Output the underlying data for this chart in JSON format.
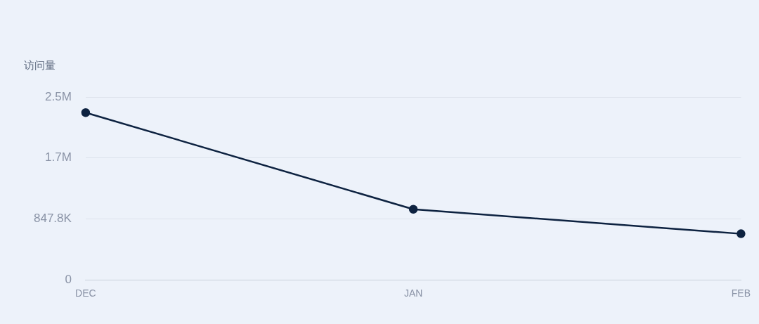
{
  "chart_data": {
    "type": "line",
    "ylabel": "访问量",
    "categories": [
      "DEC",
      "JAN",
      "FEB"
    ],
    "series": [
      {
        "color": "#0d2240",
        "values": [
          2326000,
          982000,
          641000
        ]
      }
    ],
    "ylim": [
      0,
      2543400
    ],
    "yticks": [
      0,
      {
        "value": 847800,
        "label": "847.8K"
      },
      {
        "value": 1695600,
        "label": "1.7M"
      },
      {
        "value": 2543400,
        "label": "2.5M"
      }
    ],
    "grid": "y",
    "legend": false,
    "marker": "circle",
    "line_style": "solid"
  }
}
